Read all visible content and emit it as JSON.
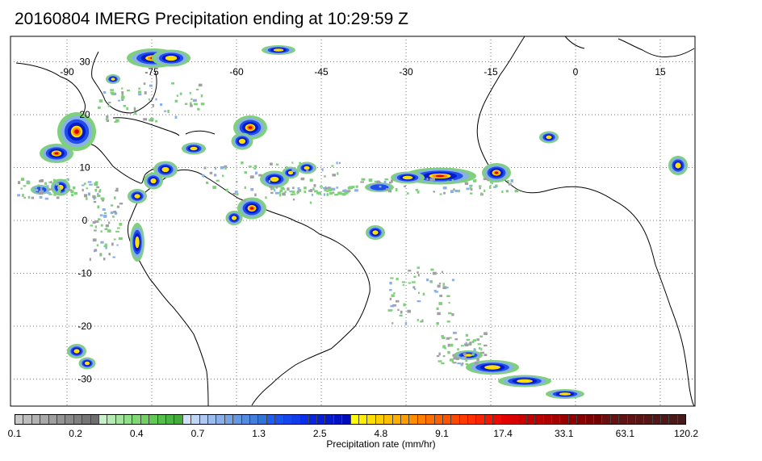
{
  "title": "20160804 IMERG Precipitation ending at 10:29:59 Z",
  "map": {
    "lon_labels": [
      "-90",
      "-75",
      "-60",
      "-45",
      "-30",
      "-15",
      "0",
      "15"
    ],
    "lon_values": [
      -90,
      -75,
      -60,
      -45,
      -30,
      -15,
      0,
      15
    ],
    "lat_labels": [
      "30",
      "20",
      "10",
      "0",
      "-10",
      "-20",
      "-30"
    ],
    "lat_values": [
      30,
      20,
      10,
      0,
      -10,
      -20,
      -30
    ],
    "gridline_style": "dotted"
  },
  "colorbar": {
    "label": "Precipitation rate (mm/hr)",
    "tick_labels": [
      "0.1",
      "0.2",
      "0.4",
      "0.7",
      "1.3",
      "2.5",
      "4.8",
      "9.1",
      "17.4",
      "33.1",
      "63.1",
      "120.2"
    ],
    "groups": [
      {
        "name": "gray",
        "colors": [
          "#c8c8c8",
          "#bdbdbd",
          "#b3b3b3",
          "#a8a8a8",
          "#9e9e9e",
          "#949494",
          "#8a8a8a",
          "#808080",
          "#767676",
          "#6e6e6e"
        ]
      },
      {
        "name": "green",
        "colors": [
          "#c8f0c8",
          "#b6eab3",
          "#a4e49f",
          "#93de8b",
          "#82d877",
          "#72d065",
          "#62c856",
          "#56be4c",
          "#4cb444",
          "#44aa3c"
        ]
      },
      {
        "name": "light-blue",
        "colors": [
          "#d2e0fa",
          "#c0d4f6",
          "#aec8f2",
          "#9cbcee",
          "#8ab0ea",
          "#78a4e6",
          "#6698e2",
          "#548cde",
          "#4280da",
          "#3074d6"
        ]
      },
      {
        "name": "blue",
        "colors": [
          "#1f5ef0",
          "#1a52ee",
          "#1547ec",
          "#103cea",
          "#0b31e8",
          "#0826e0",
          "#061ed6",
          "#0418cc",
          "#0212c2",
          "#000cb8"
        ]
      },
      {
        "name": "yellow-orange",
        "colors": [
          "#ffff00",
          "#ffef00",
          "#ffdf00",
          "#ffcf00",
          "#ffbf00",
          "#ffaf00",
          "#ff9f00",
          "#ff8f00",
          "#ff7f00",
          "#ff6f00"
        ]
      },
      {
        "name": "orange-red",
        "colors": [
          "#ff6000",
          "#ff5400",
          "#ff4800",
          "#ff3c00",
          "#ff3000",
          "#fa2400",
          "#f21800",
          "#ea0c00",
          "#e20000",
          "#d80000"
        ]
      },
      {
        "name": "red",
        "colors": [
          "#cc0000",
          "#c20000",
          "#b80000",
          "#ae0000",
          "#a40000",
          "#9a0000",
          "#900000",
          "#860000",
          "#7c0000",
          "#720000"
        ]
      },
      {
        "name": "brown",
        "colors": [
          "#6a1010",
          "#661212",
          "#621414",
          "#5e1414",
          "#5a1616",
          "#561616",
          "#521818",
          "#4e1818",
          "#4a1a1a",
          "#461a1a"
        ]
      }
    ]
  }
}
